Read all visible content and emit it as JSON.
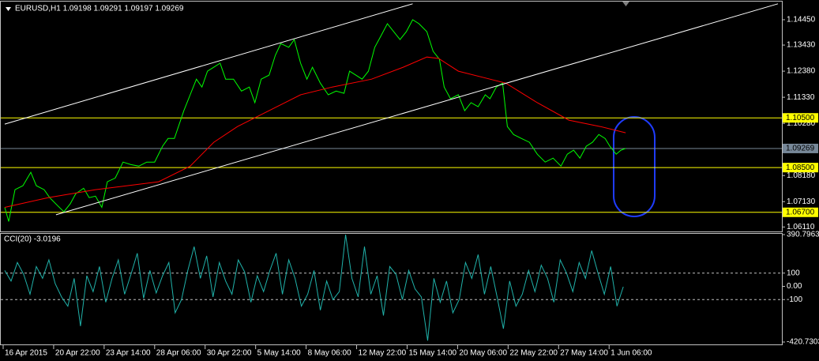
{
  "chart_data": [
    {
      "type": "line",
      "title": "EURUSD,H1  1.09198 1.09291 1.09197 1.09269",
      "xlim": [
        -3,
        987
      ],
      "ylim": [
        1.0593,
        1.1518
      ],
      "yticks": [
        {
          "value": 1.1445,
          "label": "1.14450"
        },
        {
          "value": 1.1343,
          "label": "1.13430"
        },
        {
          "value": 1.1238,
          "label": "1.12380"
        },
        {
          "value": 1.1133,
          "label": "1.11330"
        },
        {
          "value": 1.1028,
          "label": "1.10280"
        },
        {
          "value": 1.0818,
          "label": "1.08180"
        },
        {
          "value": 1.0713,
          "label": "1.07130"
        },
        {
          "value": 1.0611,
          "label": "1.06110"
        }
      ],
      "hlines": [
        {
          "value": 1.105,
          "label": "1.10500",
          "color": "#ffff00"
        },
        {
          "value": 1.09269,
          "label": "1.09269",
          "color": "#778899"
        },
        {
          "value": 1.085,
          "label": "1.08500",
          "color": "#ffff00"
        },
        {
          "value": 1.067,
          "label": "1.06700",
          "color": "#ffff00"
        }
      ],
      "series": [
        {
          "color": "#00ff00",
          "x": [
            2,
            7,
            15,
            25,
            35,
            42,
            52,
            59,
            69,
            77,
            85,
            92,
            102,
            109,
            117,
            125,
            132,
            142,
            152,
            162,
            172,
            182,
            192,
            202,
            209,
            217,
            229,
            237,
            245,
            252,
            259,
            267,
            275,
            282,
            292,
            302,
            312,
            319,
            327,
            337,
            345,
            352,
            362,
            369,
            377,
            385,
            392,
            402,
            412,
            422,
            432,
            439,
            447,
            455,
            463,
            471,
            479,
            487,
            495,
            503,
            511,
            519,
            527,
            537,
            545,
            553,
            559,
            567,
            577,
            585,
            593,
            602,
            611,
            617,
            625,
            633,
            639,
            647,
            657,
            667,
            677,
            687,
            697,
            707,
            715,
            723,
            731,
            739,
            747,
            755,
            763,
            769,
            777,
            783,
            789
          ],
          "values": [
            1.069,
            1.0633,
            1.0761,
            1.0777,
            1.0831,
            1.0777,
            1.0761,
            1.0729,
            1.0697,
            1.0672,
            1.0704,
            1.0745,
            1.0767,
            1.0729,
            1.0735,
            1.069,
            1.0793,
            1.0808,
            1.0872,
            1.0862,
            1.0856,
            1.0872,
            1.0872,
            1.0936,
            1.0967,
            1.0967,
            1.1079,
            1.1143,
            1.1206,
            1.1174,
            1.1238,
            1.1254,
            1.127,
            1.1206,
            1.1206,
            1.1158,
            1.1174,
            1.1111,
            1.1206,
            1.1222,
            1.1302,
            1.1349,
            1.1334,
            1.1365,
            1.127,
            1.1206,
            1.1254,
            1.119,
            1.1143,
            1.1158,
            1.1149,
            1.1238,
            1.1222,
            1.1206,
            1.1238,
            1.1334,
            1.1381,
            1.1429,
            1.1397,
            1.1365,
            1.1397,
            1.1445,
            1.1429,
            1.1397,
            1.1318,
            1.1286,
            1.1174,
            1.1127,
            1.1143,
            1.1079,
            1.1111,
            1.1095,
            1.1143,
            1.1127,
            1.1174,
            1.119,
            1.1015,
            1.0983,
            1.0967,
            1.0952,
            1.0904,
            1.0872,
            1.0888,
            1.0856,
            1.0904,
            1.092,
            1.0888,
            1.0936,
            1.0952,
            1.0983,
            1.0967,
            1.0936,
            1.0904,
            1.092,
            1.0927
          ]
        },
        {
          "color": "#ff0000",
          "x": [
            2,
            57,
            117,
            197,
            237,
            267,
            297,
            337,
            377,
            417,
            467,
            507,
            537,
            552,
            577,
            617,
            637,
            677,
            717,
            757,
            789
          ],
          "values": [
            1.069,
            1.0729,
            1.0761,
            1.0793,
            1.0856,
            1.0952,
            1.1015,
            1.1079,
            1.1143,
            1.1174,
            1.1206,
            1.1254,
            1.1295,
            1.1289,
            1.1238,
            1.1206,
            1.119,
            1.1111,
            1.1041,
            1.1015,
            1.099
          ]
        },
        {
          "color": "#ffffff",
          "x": [
            2,
            519
          ],
          "values": [
            1.1025,
            1.1509
          ]
        },
        {
          "color": "#ffffff",
          "x": [
            67,
            982
          ],
          "values": [
            1.066,
            1.1509
          ]
        }
      ]
    },
    {
      "type": "line",
      "title": "CCI(20) -3.0196",
      "xlim": [
        -3,
        987
      ],
      "ylim": [
        -420.7303,
        390.7963
      ],
      "yticks": [
        390.7963,
        100,
        {
          "value": 0,
          "label": "0.00"
        },
        -100,
        -420.7303
      ],
      "levels": [
        100,
        -100
      ],
      "xticks": [
        {
          "value": 0,
          "label": "16 Apr 2015"
        },
        {
          "value": 64,
          "label": "20 Apr 22:00"
        },
        {
          "value": 128,
          "label": "23 Apr 14:00"
        },
        {
          "value": 192,
          "label": "28 Apr 06:00"
        },
        {
          "value": 256,
          "label": "30 Apr 22:00"
        },
        {
          "value": 320,
          "label": "5 May 14:00"
        },
        {
          "value": 384,
          "label": "8 May 06:00"
        },
        {
          "value": 448,
          "label": "12 May 22:00"
        },
        {
          "value": 512,
          "label": "15 May 14:00"
        },
        {
          "value": 576,
          "label": "20 May 06:00"
        },
        {
          "value": 640,
          "label": "22 May 22:00"
        },
        {
          "value": 704,
          "label": "27 May 14:00"
        },
        {
          "value": 768,
          "label": "1 Jun 06:00"
        }
      ],
      "series": [
        {
          "color": "#20b2aa",
          "x": [
            2,
            10,
            18,
            26,
            34,
            42,
            50,
            58,
            66,
            74,
            82,
            90,
            98,
            106,
            114,
            122,
            130,
            138,
            146,
            154,
            162,
            170,
            178,
            186,
            194,
            202,
            210,
            218,
            226,
            234,
            242,
            250,
            258,
            266,
            274,
            282,
            290,
            298,
            306,
            314,
            322,
            330,
            338,
            346,
            354,
            362,
            370,
            378,
            386,
            394,
            402,
            410,
            418,
            426,
            434,
            442,
            450,
            458,
            466,
            474,
            482,
            490,
            498,
            506,
            514,
            522,
            530,
            538,
            546,
            554,
            562,
            570,
            578,
            586,
            594,
            602,
            610,
            618,
            626,
            634,
            642,
            650,
            658,
            666,
            674,
            682,
            690,
            698,
            706,
            714,
            722,
            730,
            738,
            746,
            754,
            762,
            770,
            778,
            786
          ],
          "values": [
            120,
            40,
            180,
            90,
            -60,
            150,
            60,
            200,
            20,
            -80,
            -150,
            60,
            -300,
            80,
            -40,
            150,
            -120,
            60,
            200,
            -60,
            90,
            250,
            -90,
            120,
            -50,
            80,
            180,
            -200,
            -100,
            120,
            300,
            60,
            230,
            -80,
            180,
            40,
            -60,
            200,
            110,
            -120,
            80,
            -40,
            120,
            250,
            -60,
            200,
            60,
            -150,
            -60,
            120,
            -180,
            40,
            -100,
            -40,
            390,
            60,
            -80,
            300,
            -60,
            80,
            -220,
            150,
            90,
            -100,
            120,
            -20,
            -80,
            -410,
            60,
            -120,
            40,
            -200,
            -100,
            180,
            60,
            240,
            -60,
            150,
            -80,
            -320,
            40,
            -150,
            -60,
            120,
            -40,
            160,
            60,
            -120,
            200,
            100,
            -40,
            180,
            60,
            270,
            100,
            -60,
            150,
            -150,
            -3
          ]
        }
      ]
    }
  ]
}
